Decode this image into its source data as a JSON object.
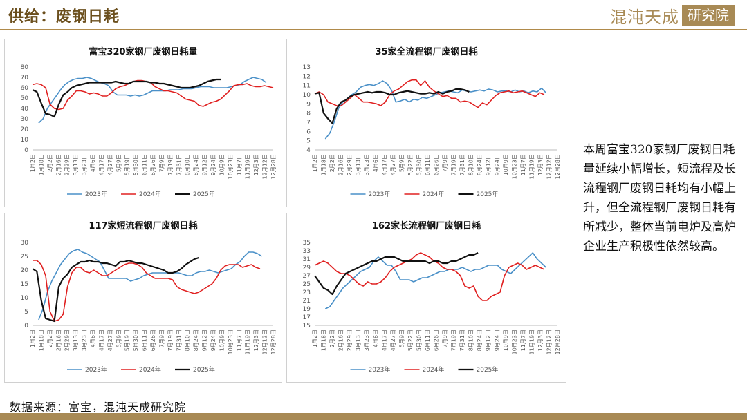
{
  "header": {
    "title": "供给：废钢日耗",
    "logo_text": "混沌天成",
    "logo_box": "研究院"
  },
  "note": "本周富宝320家钢厂废钢日耗量延续小幅增长，短流程及长流程钢厂废钢日耗均有小幅上升，但全流程钢厂废钢日耗有所减少，整体当前电炉及高炉企业生产积极性依然较高。",
  "source": "数据来源：富宝，混沌天成研究院",
  "colors": {
    "s2023": "#4a90c8",
    "s2024": "#e02020",
    "s2025": "#111111"
  },
  "chart_data": [
    {
      "type": "line",
      "title": "富宝320家钢厂废钢日耗量",
      "ylim": [
        0,
        80
      ],
      "yticks": [
        0,
        10,
        20,
        30,
        40,
        50,
        60,
        70,
        80
      ],
      "xticks": [
        "1月2日",
        "1月18日",
        "2月2日",
        "2月16日",
        "2月29日",
        "3月13日",
        "3月23日",
        "4月6日",
        "4月17日",
        "4月27日",
        "5月9日",
        "5月19日",
        "5月30日",
        "6月11日",
        "6月26日",
        "7月9日",
        "7月19日",
        "7月31日",
        "8月10日",
        "8月24日",
        "9月12日",
        "9月24日",
        "10月9日",
        "10月23日",
        "11月7日",
        "11月19日",
        "12月3日",
        "12月12日",
        "12月28日"
      ],
      "series": [
        {
          "name": "2023年",
          "color": "#4a90c8",
          "x0": 1.4,
          "values": [
            26,
            30,
            40,
            46,
            52,
            58,
            63,
            66,
            68,
            69,
            69,
            70,
            69,
            67,
            65,
            64,
            62,
            56,
            53,
            53,
            53,
            52,
            53,
            52,
            53,
            55,
            57,
            57,
            57,
            57,
            58,
            58,
            58,
            59,
            59,
            59,
            60,
            61,
            61,
            61,
            60,
            60,
            60,
            60,
            61,
            62,
            63,
            66,
            68,
            70,
            69,
            68,
            65
          ]
        },
        {
          "name": "2024年",
          "color": "#e02020",
          "x0": 0,
          "values": [
            63,
            64,
            63,
            60,
            44,
            40,
            39,
            40,
            48,
            52,
            57,
            57,
            56,
            54,
            55,
            54,
            52,
            52,
            55,
            59,
            61,
            62,
            64,
            66,
            67,
            67,
            66,
            65,
            61,
            59,
            57,
            57,
            56,
            55,
            52,
            49,
            48,
            47,
            43,
            42,
            44,
            46,
            47,
            49,
            53,
            57,
            62,
            63,
            63,
            64,
            62,
            61,
            61,
            62,
            61,
            60
          ]
        },
        {
          "name": "2025年",
          "color": "#111111",
          "x0": 0,
          "values": [
            58,
            56,
            45,
            35,
            34,
            32,
            44,
            53,
            56,
            60,
            62,
            63,
            64,
            65,
            65,
            65,
            65,
            65,
            65,
            66,
            65,
            64,
            64,
            66,
            66,
            66,
            66,
            65,
            65,
            64,
            64,
            63,
            62,
            61,
            60,
            60,
            60,
            61,
            62,
            64,
            66,
            67,
            68,
            68
          ]
        }
      ]
    },
    {
      "type": "line",
      "title": "35家全流程钢厂废钢日耗",
      "ylim": [
        4,
        13
      ],
      "yticks": [
        4,
        5,
        6,
        7,
        8,
        9,
        10,
        11,
        12,
        13
      ],
      "xticks": [
        "1月2日",
        "1月18日",
        "2月2日",
        "2月16日",
        "2月29日",
        "3月13日",
        "3月23日",
        "4月6日",
        "4月17日",
        "4月27日",
        "5月9日",
        "5月22日",
        "5月30日",
        "6月11日",
        "6月26日",
        "7月9日",
        "7月19日",
        "7月31日",
        "8月10日",
        "8月24日",
        "9月12日",
        "9月24日",
        "10月9日",
        "10月23日",
        "11月7日",
        "11月19日",
        "12月3日",
        "12月12日",
        "12月28日"
      ],
      "series": [
        {
          "name": "2023年",
          "color": "#4a90c8",
          "x0": 2.4,
          "values": [
            5.2,
            5.8,
            7,
            8.5,
            9.2,
            9.6,
            10,
            10.3,
            10.8,
            11,
            11.1,
            11,
            11.2,
            11.5,
            11.2,
            10.5,
            9.2,
            9.3,
            9.5,
            9.2,
            9.5,
            9.4,
            9.7,
            9.6,
            9.8,
            10,
            10.2,
            10.3,
            10.4,
            10.3,
            10.2,
            10.5,
            10.4,
            10.3,
            10.4,
            10.5,
            10.4,
            10.6,
            10.5,
            10.3,
            10.4,
            10.4,
            10.3,
            10.5,
            10.3,
            10.4,
            10.2,
            10.4,
            10.3,
            10.7,
            10.2
          ]
        },
        {
          "name": "2024年",
          "color": "#e02020",
          "x0": 0,
          "values": [
            10.1,
            10.3,
            10,
            9.2,
            9,
            8.8,
            8.8,
            9.2,
            9.6,
            10,
            9.6,
            9.2,
            9.2,
            9.1,
            9,
            8.8,
            9.2,
            10,
            10.4,
            10.6,
            11,
            11.4,
            11.6,
            11.6,
            11,
            11.5,
            10.8,
            10.4,
            10.1,
            9.8,
            9.9,
            9.6,
            9.6,
            9.2,
            9.3,
            9.2,
            8.9,
            8.6,
            9.1,
            8.9,
            9.4,
            9.9,
            10.2,
            10.3,
            10.4,
            10.2,
            10.3,
            10.4,
            10.2,
            10,
            9.8,
            10.2,
            10
          ]
        },
        {
          "name": "2025年",
          "color": "#111111",
          "x0": 0,
          "values": [
            10.1,
            10.2,
            8,
            7.4,
            6.9,
            8.5,
            9.2,
            9.4,
            9.8,
            10,
            10.1,
            10.2,
            10.3,
            10.2,
            10.3,
            10.3,
            10.2,
            10,
            10,
            10.2,
            10.3,
            10.4,
            10.3,
            10.2,
            10.1,
            10.1,
            10.2,
            10.1,
            10.3,
            10.1,
            10.3,
            10.4,
            10.6,
            10.6,
            10.5,
            10.3
          ]
        }
      ]
    },
    {
      "type": "line",
      "title": "117家短流程钢厂废钢日耗",
      "ylim": [
        0,
        30
      ],
      "yticks": [
        0,
        5,
        10,
        15,
        20,
        25,
        30
      ],
      "xticks": [
        "1月2日",
        "1月18日",
        "2月2日",
        "2月16日",
        "2月29日",
        "3月13日",
        "3月23日",
        "4月6日",
        "4月17日",
        "4月27日",
        "5月9日",
        "5月19日",
        "5月30日",
        "6月11日",
        "6月26日",
        "7月9日",
        "7月19日",
        "7月31日",
        "8月10日",
        "8月24日",
        "9月12日",
        "9月24日",
        "10月9日",
        "10月23日",
        "11月7日",
        "11月19日",
        "12月3日",
        "12月12日",
        "12月28日"
      ],
      "series": [
        {
          "name": "2023年",
          "color": "#4a90c8",
          "x0": 1.4,
          "values": [
            2,
            6,
            12,
            16,
            19,
            22,
            24,
            26,
            27,
            27.5,
            26.5,
            26,
            25,
            24,
            23,
            20,
            17,
            17,
            17,
            17,
            17,
            16,
            16.5,
            17,
            18,
            18.5,
            19,
            19,
            19,
            19,
            19,
            19,
            19,
            18.5,
            18,
            18,
            19,
            19.5,
            19.5,
            20,
            19.5,
            19,
            19.5,
            20,
            20.5,
            22,
            23,
            25,
            26.5,
            26.5,
            26,
            25
          ]
        },
        {
          "name": "2024年",
          "color": "#e02020",
          "x0": 0,
          "values": [
            23.5,
            23.5,
            22,
            18,
            5,
            1.5,
            2,
            4,
            14,
            19,
            21,
            21,
            19.5,
            19,
            20,
            19,
            18,
            18,
            19,
            20,
            21,
            22,
            22.5,
            22.5,
            22,
            21,
            19,
            18,
            17,
            17,
            17,
            17,
            16.5,
            14,
            13,
            12.5,
            12,
            11.5,
            12,
            13,
            14,
            15,
            17,
            20,
            21.5,
            22,
            22,
            22,
            21,
            21.5,
            22,
            21,
            20.5
          ]
        },
        {
          "name": "2025年",
          "color": "#111111",
          "x0": 0,
          "values": [
            20.5,
            19.5,
            9,
            2.5,
            2,
            1.5,
            14,
            17,
            18.5,
            21,
            22,
            23,
            23,
            23.5,
            23,
            23,
            22.5,
            22.5,
            22,
            21.5,
            23,
            23,
            23.5,
            23,
            22.5,
            22.5,
            22,
            21.5,
            21,
            20.5,
            20,
            19,
            19,
            19.5,
            20.5,
            22,
            23,
            24,
            24.5
          ]
        }
      ]
    },
    {
      "type": "line",
      "title": "162家长流程钢厂废钢日耗",
      "ylim": [
        15,
        35
      ],
      "yticks": [
        15,
        17,
        19,
        21,
        23,
        25,
        27,
        29,
        31,
        33,
        35
      ],
      "xticks": [
        "1月2日",
        "1月18日",
        "2月2日",
        "2月16日",
        "2月29日",
        "3月13日",
        "3月23日",
        "4月6日",
        "4月17日",
        "4月27日",
        "5月9日",
        "5月22日",
        "5月30日",
        "6月11日",
        "6月26日",
        "7月9日",
        "7月19日",
        "7月31日",
        "8月10日",
        "8月24日",
        "9月12日",
        "9月24日",
        "10月9日",
        "10月23日",
        "11月7日",
        "11月19日",
        "12月3日",
        "12月12日",
        "12月28日"
      ],
      "series": [
        {
          "name": "2023年",
          "color": "#4a90c8",
          "x0": 2.4,
          "values": [
            19,
            19.5,
            21,
            22.5,
            24,
            25,
            26,
            27,
            28,
            28.5,
            29,
            30.5,
            31.5,
            30.5,
            29.5,
            29.5,
            28,
            26,
            26,
            26,
            25.5,
            26,
            26.5,
            26.5,
            27,
            27.5,
            28,
            28,
            28.5,
            28.5,
            28.5,
            29,
            28.5,
            28,
            28.5,
            28.5,
            29,
            29.5,
            29.5,
            29.5,
            28.5,
            28,
            27.5,
            28.5,
            29.5,
            30.5,
            31.5,
            32.5,
            31,
            30,
            29
          ]
        },
        {
          "name": "2024年",
          "color": "#e02020",
          "x0": 0,
          "values": [
            29.5,
            30,
            30.5,
            30,
            29,
            28,
            27.5,
            27.5,
            27,
            26,
            25,
            24.5,
            25.5,
            25,
            25,
            25.5,
            26.5,
            28,
            29,
            29.5,
            30,
            30.5,
            31,
            32,
            32.5,
            32,
            31.5,
            30.5,
            30,
            29,
            28.5,
            28.5,
            28,
            27,
            24.5,
            24,
            24.5,
            22,
            21,
            21,
            22,
            22.5,
            23,
            27,
            29,
            29.5,
            30,
            29.5,
            28.5,
            29,
            29.5,
            29,
            28.5
          ]
        },
        {
          "name": "2025年",
          "color": "#111111",
          "x0": 0,
          "values": [
            27,
            25.5,
            24,
            23.5,
            22.5,
            24.5,
            26,
            27.5,
            28,
            28.5,
            29,
            29.5,
            30,
            30.5,
            30.5,
            31,
            31.5,
            31.5,
            31.5,
            31,
            30.5,
            30.5,
            30.5,
            30.5,
            30.5,
            30.5,
            30,
            30.5,
            30.5,
            30,
            30,
            30.5,
            30.5,
            31,
            31.5,
            32,
            32,
            32.5
          ]
        }
      ]
    }
  ],
  "legend": [
    "2023年",
    "2024年",
    "2025年"
  ]
}
